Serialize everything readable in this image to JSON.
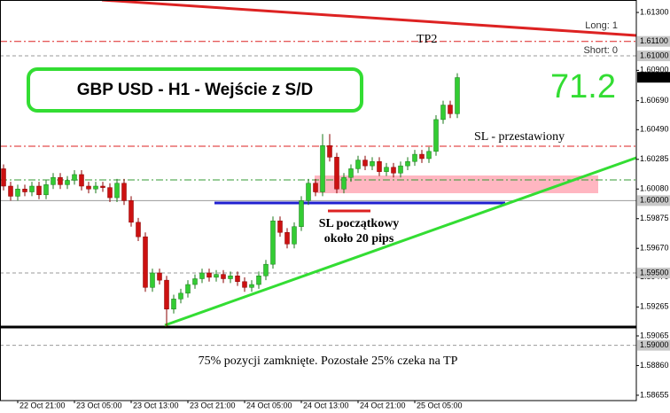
{
  "chart_data": {
    "type": "candlestick",
    "title": "GBP USD - H1 - Wejście z S/D",
    "score": "71.2",
    "tp2_label": "TP2",
    "long_label": "Long: 1",
    "short_label": "Short: 0",
    "sl_moved": "SL - przestawiony",
    "sl_initial": [
      "SL początkowy",
      "około  20 pips"
    ],
    "note": "75% pozycji zamknięte. Pozostałe 25% czeka na TP",
    "up_color": "#33cc33",
    "down_color": "#cc1111",
    "categories": [
      null,
      null,
      "22 Oct 21:00",
      null,
      null,
      null,
      null,
      null,
      null,
      null,
      "23 Oct 05:00",
      null,
      null,
      null,
      null,
      null,
      null,
      null,
      "23 Oct 13:00",
      null,
      null,
      null,
      null,
      null,
      null,
      null,
      "23 Oct 21:00",
      null,
      null,
      null,
      null,
      null,
      null,
      null,
      "24 Oct 05:00",
      null,
      null,
      null,
      null,
      null,
      null,
      null,
      "24 Oct 13:00",
      null,
      null,
      null,
      null,
      null,
      null,
      null,
      "24 Oct 21:00",
      null,
      null,
      null,
      null,
      null,
      null,
      null,
      "25 Oct 05:00",
      null,
      null,
      null,
      null,
      null,
      null
    ],
    "open": [
      1.6022,
      1.601,
      1.6003,
      1.6008,
      1.6006,
      1.601,
      1.6004,
      1.6011,
      1.6016,
      1.6011,
      1.6014,
      1.6018,
      1.601,
      1.6008,
      1.601,
      1.6009,
      1.6002,
      1.6012,
      1.6,
      1.5985,
      1.5975,
      1.594,
      1.595,
      1.5945,
      1.5925,
      1.5932,
      1.5936,
      1.5942,
      1.5946,
      1.595,
      1.5947,
      1.5949,
      1.5946,
      1.5948,
      1.5944,
      1.594,
      1.5942,
      1.5948,
      1.5956,
      1.5986,
      1.5978,
      1.597,
      1.5982,
      1.6,
      1.6012,
      1.6006,
      1.6038,
      1.603,
      1.6008,
      1.6016,
      1.6022,
      1.6028,
      1.6024,
      1.6027,
      1.602,
      1.6023,
      1.6019,
      1.6024,
      1.6027,
      1.6032,
      1.6029,
      1.6034,
      1.6056,
      1.6066,
      1.606
    ],
    "high": [
      1.6025,
      1.6013,
      1.6011,
      1.6011,
      1.6013,
      1.6013,
      1.6014,
      1.6019,
      1.6019,
      1.6017,
      1.6021,
      1.6021,
      1.6013,
      1.6013,
      1.6013,
      1.6012,
      1.6015,
      1.6015,
      1.6003,
      1.5988,
      1.5978,
      1.5953,
      1.5953,
      1.5948,
      1.5935,
      1.5939,
      1.5945,
      1.5949,
      1.5953,
      1.5953,
      1.5952,
      1.5952,
      1.5951,
      1.5951,
      1.5947,
      1.5945,
      1.5951,
      1.5959,
      1.5989,
      1.5989,
      1.5981,
      1.5985,
      1.6003,
      1.6015,
      1.6015,
      1.6046,
      1.6046,
      1.6033,
      1.6019,
      1.6025,
      1.6031,
      1.6031,
      1.603,
      1.603,
      1.6026,
      1.6026,
      1.6027,
      1.603,
      1.6035,
      1.6035,
      1.6037,
      1.6059,
      1.6069,
      1.6069,
      1.6088
    ],
    "low": [
      1.6007,
      1.6,
      1.6,
      1.6003,
      1.6003,
      1.6001,
      1.6001,
      1.6008,
      1.6008,
      1.6008,
      1.6011,
      1.6007,
      1.6005,
      1.6005,
      1.6006,
      1.5999,
      1.5999,
      1.5997,
      1.5982,
      1.5972,
      1.5937,
      1.5937,
      1.5942,
      1.5913,
      1.5922,
      1.5929,
      1.5933,
      1.5939,
      1.5943,
      1.5944,
      1.5944,
      1.5943,
      1.5943,
      1.5941,
      1.5937,
      1.5937,
      1.5939,
      1.5945,
      1.5953,
      1.5975,
      1.5967,
      1.5967,
      1.5979,
      1.5997,
      1.6003,
      1.6003,
      1.6027,
      1.6005,
      1.6005,
      1.6013,
      1.6019,
      1.6021,
      1.6021,
      1.6017,
      1.6017,
      1.6016,
      1.6016,
      1.6021,
      1.6024,
      1.6026,
      1.6026,
      1.6031,
      1.6053,
      1.6057,
      1.6057
    ],
    "close": [
      1.601,
      1.6003,
      1.6008,
      1.6006,
      1.601,
      1.6004,
      1.6011,
      1.6016,
      1.6011,
      1.6014,
      1.6018,
      1.601,
      1.6008,
      1.601,
      1.6009,
      1.6002,
      1.6012,
      1.6,
      1.5985,
      1.5975,
      1.594,
      1.595,
      1.5945,
      1.5925,
      1.5932,
      1.5936,
      1.5942,
      1.5946,
      1.595,
      1.5947,
      1.5949,
      1.5946,
      1.5948,
      1.5944,
      1.594,
      1.5942,
      1.5948,
      1.5956,
      1.5986,
      1.5978,
      1.597,
      1.5982,
      1.6,
      1.6012,
      1.6006,
      1.6038,
      1.603,
      1.6008,
      1.6016,
      1.6022,
      1.6028,
      1.6024,
      1.6027,
      1.602,
      1.6023,
      1.6019,
      1.6024,
      1.6027,
      1.6032,
      1.6029,
      1.6034,
      1.6056,
      1.6066,
      1.606,
      1.6085
    ],
    "ylim": [
      1.58618,
      1.61386
    ],
    "yticks": [
      {
        "value": 1.613,
        "label": "1.61300"
      },
      {
        "value": 1.609,
        "label": "1.60900"
      },
      {
        "value": 1.6069,
        "label": "1.60690"
      },
      {
        "value": 1.6049,
        "label": "1.60490"
      },
      {
        "value": 1.60285,
        "label": "1.60285"
      },
      {
        "value": 1.6008,
        "label": "1.60080"
      },
      {
        "value": 1.59875,
        "label": "1.59875"
      },
      {
        "value": 1.5967,
        "label": "1.59670"
      },
      {
        "value": 1.5947,
        "label": "1.59470"
      },
      {
        "value": 1.59265,
        "label": "1.59265"
      },
      {
        "value": 1.59065,
        "label": "1.59065"
      },
      {
        "value": 1.5886,
        "label": "1.58860"
      },
      {
        "value": 1.58655,
        "label": "1.58655"
      }
    ],
    "levels": [
      {
        "value": 1.611,
        "label": "1.61100",
        "line": "dashdot",
        "color": "#dd2222"
      },
      {
        "value": 1.61,
        "label": "1.61000",
        "line": "dashed",
        "color": "#999999"
      },
      {
        "value": 1.60852,
        "label": "1.60852",
        "line": "none",
        "color": "#000000"
      },
      {
        "value": 1.6,
        "label": "1.60000",
        "line": "solid",
        "color": "#999999"
      },
      {
        "value": 1.595,
        "label": "1.59500",
        "line": "dashed",
        "color": "#999999"
      },
      {
        "value": 1.59,
        "label": "1.59000",
        "line": "dashed",
        "color": "#999999"
      }
    ]
  }
}
